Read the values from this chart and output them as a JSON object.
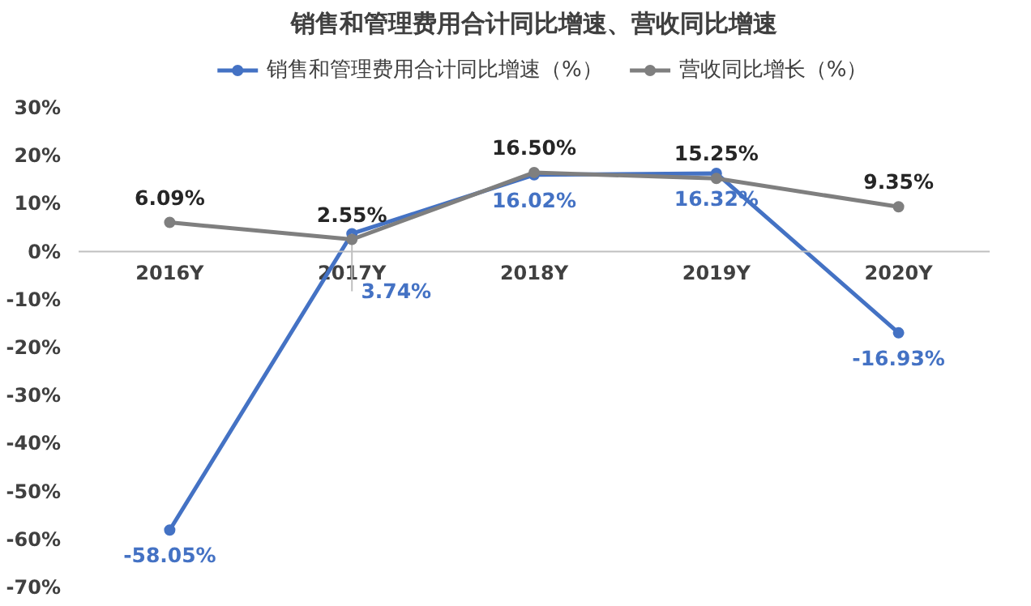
{
  "chart_data": {
    "type": "line",
    "title": "销售和管理费用合计同比增速、营收同比增速",
    "categories": [
      "2016Y",
      "2017Y",
      "2018Y",
      "2019Y",
      "2020Y"
    ],
    "series": [
      {
        "name": "销售和管理费用合计同比增速（%）",
        "color": "#4472c4",
        "values": [
          -58.05,
          3.74,
          16.02,
          16.32,
          -16.93
        ],
        "value_labels": [
          "-58.05%",
          "3.74%",
          "16.02%",
          "16.32%",
          "-16.93%"
        ]
      },
      {
        "name": "营收同比增长（%）",
        "color": "#7f7f7f",
        "values": [
          6.09,
          2.55,
          16.5,
          15.25,
          9.35
        ],
        "value_labels": [
          "6.09%",
          "2.55%",
          "16.50%",
          "15.25%",
          "9.35%"
        ]
      }
    ],
    "ylim": [
      -70,
      30
    ],
    "yticks": [
      {
        "value": 30,
        "label": "30%"
      },
      {
        "value": 20,
        "label": "20%"
      },
      {
        "value": 10,
        "label": "10%"
      },
      {
        "value": 0,
        "label": "0%"
      },
      {
        "value": -10,
        "label": "-10%"
      },
      {
        "value": -20,
        "label": "-20%"
      },
      {
        "value": -30,
        "label": "-30%"
      },
      {
        "value": -40,
        "label": "-40%"
      },
      {
        "value": -50,
        "label": "-50%"
      },
      {
        "value": -60,
        "label": "-60%"
      },
      {
        "value": -70,
        "label": "-70%"
      }
    ],
    "grid": false,
    "legend": "top",
    "marker": "circle",
    "line_style": "solid"
  }
}
